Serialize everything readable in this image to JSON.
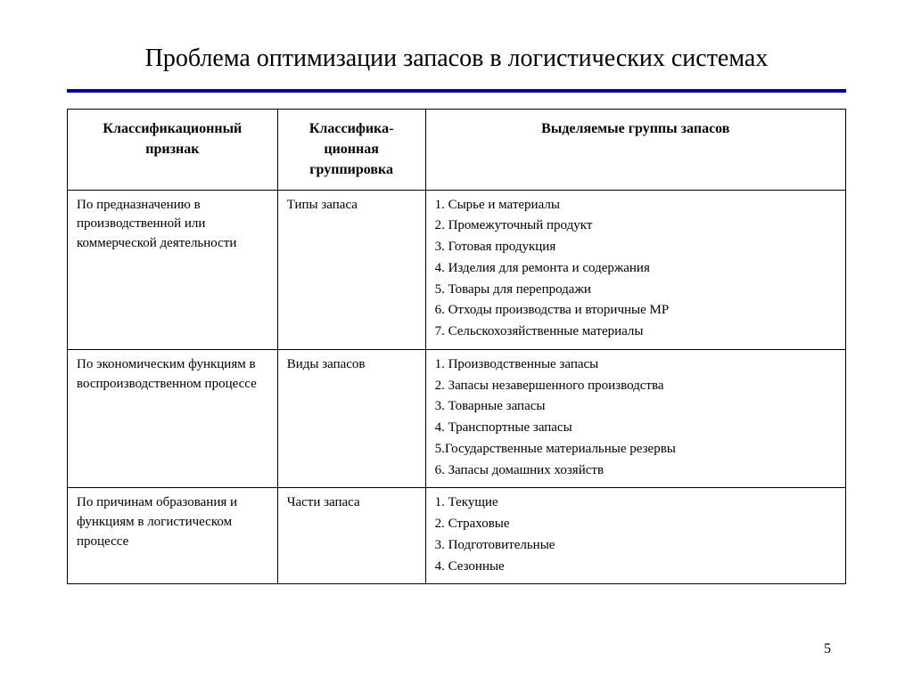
{
  "title": "Проблема оптимизации запасов в логистических системах",
  "page_number": "5",
  "table": {
    "headers": {
      "col1": "Классификационный признак",
      "col2": "Классифика-ционная группировка",
      "col3": "Выделяемые группы запасов"
    },
    "rows": [
      {
        "col1": "По предназначению в производственной или коммерческой деятельности",
        "col2": "Типы запаса",
        "items": [
          "1. Сырье и материалы",
          "2. Промежуточный продукт",
          "3. Готовая продукция",
          "4. Изделия для ремонта и содержания",
          "5. Товары для перепродажи",
          "6. Отходы производства и вторичные   МР",
          "7. Сельскохозяйственные материалы"
        ]
      },
      {
        "col1": "По экономическим функциям в воспроизводственном процессе",
        "col2": "Виды запасов",
        "items": [
          "1. Производственные запасы",
          "2. Запасы незавершенного производства",
          "3. Товарные запасы",
          "4. Транспортные запасы",
          "5.Государственные материальные резервы",
          " 6. Запасы домашних хозяйств"
        ]
      },
      {
        "col1": "По причинам образования и функциям в логистическом процессе",
        "col2": "Части запаса",
        "items": [
          "1.  Текущие",
          "2. Страховые",
          "3. Подготовительные",
          "4. Сезонные"
        ]
      }
    ]
  },
  "styling": {
    "divider_color": "#000099",
    "border_color": "#000000",
    "background_color": "#ffffff",
    "text_color": "#000000",
    "title_fontsize": 28,
    "header_fontsize": 16,
    "body_fontsize": 15,
    "font_family": "Times New Roman",
    "col_widths": [
      "27%",
      "19%",
      "54%"
    ]
  }
}
